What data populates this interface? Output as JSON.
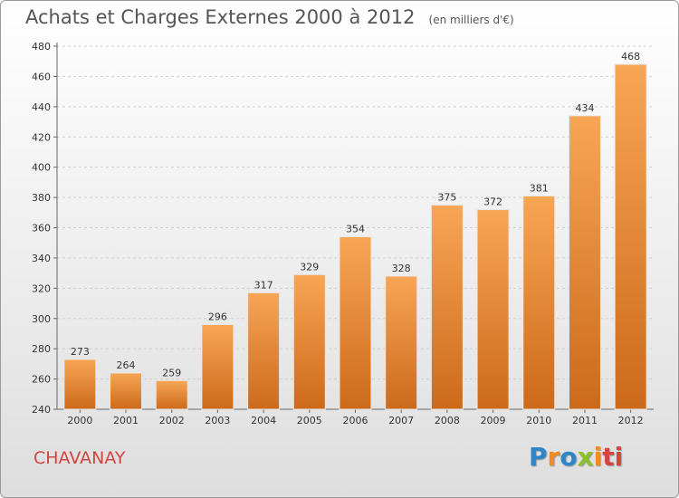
{
  "chart_data": {
    "type": "bar",
    "title": "Achats et Charges Externes 2000 à 2012",
    "subtitle": "(en milliers d'€)",
    "categories": [
      "2000",
      "2001",
      "2002",
      "2003",
      "2004",
      "2005",
      "2006",
      "2007",
      "2008",
      "2009",
      "2010",
      "2011",
      "2012"
    ],
    "values": [
      273,
      264,
      259,
      296,
      317,
      329,
      354,
      328,
      375,
      372,
      381,
      434,
      468
    ],
    "ylim": [
      240,
      480
    ],
    "yticks": [
      240,
      260,
      280,
      300,
      320,
      340,
      360,
      380,
      400,
      420,
      440,
      460,
      480
    ],
    "grid": true,
    "bar_color_top": "#f7a656",
    "bar_color_bottom": "#cc6a1a"
  },
  "place_name": "CHAVANAY",
  "logo": {
    "letters": [
      "P",
      "r",
      "o",
      "x",
      "i",
      "ti"
    ]
  }
}
